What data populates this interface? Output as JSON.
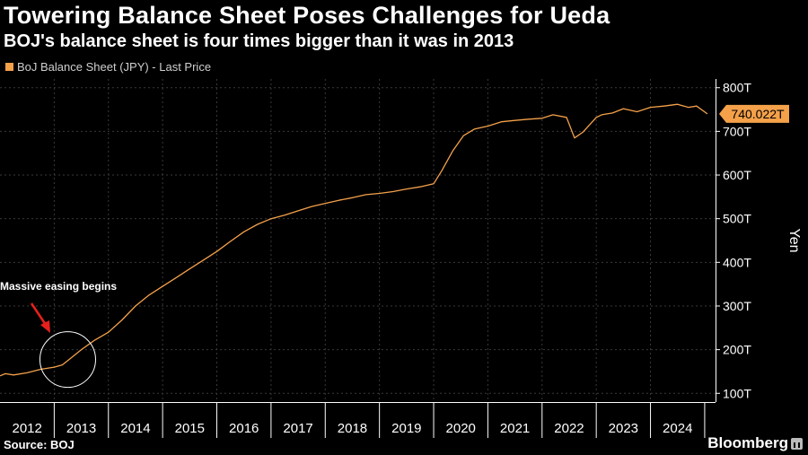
{
  "header": {
    "title": "Towering Balance Sheet Poses Challenges for Ueda",
    "subtitle": "BOJ's balance sheet is four times bigger than it was in 2013"
  },
  "legend": {
    "label": "BoJ Balance Sheet (JPY) - Last Price"
  },
  "footer": {
    "source": "Source: BOJ",
    "brand": "Bloomberg"
  },
  "colors": {
    "background": "#000000",
    "line": "#f5a14a",
    "grid": "#3a3a3a",
    "arrow": "#e8201c",
    "circle": "#ffffff"
  },
  "chart_data": {
    "type": "line",
    "title": "Towering Balance Sheet Poses Challenges for Ueda",
    "subtitle": "BOJ's balance sheet is four times bigger than it was in 2013",
    "xlabel": "",
    "ylabel": "Yen",
    "x_range": [
      2012.0,
      2025.2
    ],
    "ylim": [
      80,
      820
    ],
    "y_ticks": [
      100,
      200,
      300,
      400,
      500,
      600,
      700,
      800
    ],
    "y_tick_labels": [
      "100T",
      "200T",
      "300T",
      "400T",
      "500T",
      "600T",
      "700T",
      "800T"
    ],
    "x_ticks": [
      2012,
      2013,
      2014,
      2015,
      2016,
      2017,
      2018,
      2019,
      2020,
      2021,
      2022,
      2023,
      2024
    ],
    "x_tick_labels": [
      "2012",
      "2013",
      "2014",
      "2015",
      "2016",
      "2017",
      "2018",
      "2019",
      "2020",
      "2021",
      "2022",
      "2023",
      "2024"
    ],
    "grid": true,
    "legend_position": "top-left",
    "series": [
      {
        "name": "BoJ Balance Sheet (JPY) - Last Price",
        "unit": "trillion yen",
        "x": [
          2012.0,
          2012.1,
          2012.25,
          2012.5,
          2012.75,
          2013.0,
          2013.15,
          2013.3,
          2013.5,
          2013.75,
          2014.0,
          2014.25,
          2014.5,
          2014.75,
          2015.0,
          2015.25,
          2015.5,
          2015.75,
          2016.0,
          2016.25,
          2016.5,
          2016.75,
          2017.0,
          2017.25,
          2017.5,
          2017.75,
          2018.0,
          2018.25,
          2018.5,
          2018.75,
          2019.0,
          2019.25,
          2019.5,
          2019.75,
          2020.0,
          2020.15,
          2020.35,
          2020.55,
          2020.75,
          2021.0,
          2021.25,
          2021.5,
          2021.75,
          2022.0,
          2022.2,
          2022.45,
          2022.6,
          2022.75,
          2023.0,
          2023.1,
          2023.3,
          2023.5,
          2023.75,
          2024.0,
          2024.25,
          2024.5,
          2024.7,
          2024.85,
          2025.05
        ],
        "values": [
          140,
          145,
          142,
          147,
          155,
          160,
          165,
          180,
          200,
          222,
          240,
          268,
          300,
          325,
          345,
          365,
          385,
          405,
          425,
          448,
          470,
          487,
          500,
          508,
          518,
          528,
          535,
          542,
          548,
          555,
          558,
          562,
          568,
          573,
          580,
          610,
          655,
          690,
          705,
          712,
          722,
          725,
          728,
          730,
          738,
          732,
          685,
          698,
          732,
          738,
          742,
          752,
          745,
          755,
          758,
          762,
          755,
          758,
          740
        ]
      }
    ],
    "last_price_label": "740.022T",
    "annotations": [
      {
        "text": "Massive easing begins",
        "x": 2013.25,
        "y": 165,
        "marker": "circle-with-arrow"
      }
    ]
  }
}
